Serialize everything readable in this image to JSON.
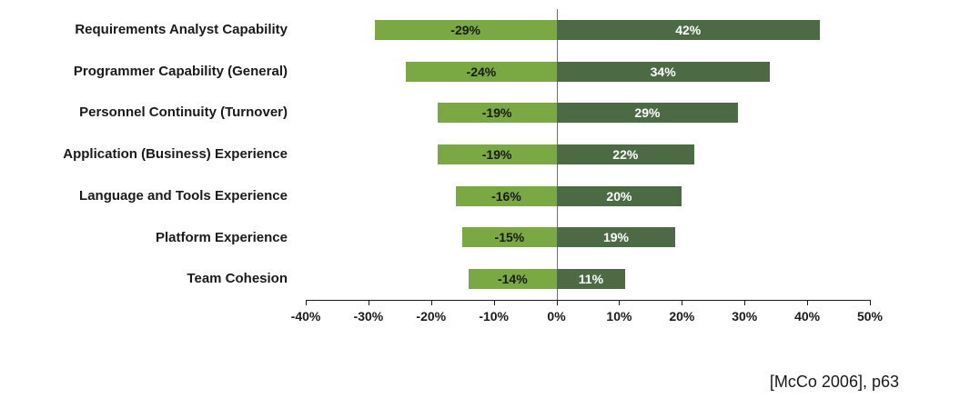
{
  "chart_data": {
    "type": "bar",
    "orientation": "horizontal-diverging",
    "title": "",
    "categories": [
      "Requirements Analyst Capability",
      "Programmer Capability (General)",
      "Personnel Continuity (Turnover)",
      "Application (Business) Experience",
      "Language and Tools Experience",
      "Platform Experience",
      "Team Cohesion"
    ],
    "series": [
      {
        "name": "decrease",
        "values": [
          -29,
          -24,
          -19,
          -19,
          -16,
          -15,
          -14
        ],
        "color": "#7aa843",
        "label_color": "#1a1a1a"
      },
      {
        "name": "increase",
        "values": [
          42,
          34,
          29,
          22,
          20,
          19,
          11
        ],
        "color": "#4c6b45",
        "label_color": "#ffffff"
      }
    ],
    "xlim": [
      -40,
      50
    ],
    "x_tick_values": [
      -40,
      -30,
      -20,
      -10,
      0,
      10,
      20,
      30,
      40,
      50
    ],
    "x_ticks": [
      "-40%",
      "-30%",
      "-20%",
      "-10%",
      "0%",
      "10%",
      "20%",
      "30%",
      "40%",
      "50%"
    ],
    "value_suffix": "%",
    "grid": false,
    "legend": "none"
  },
  "citation": "[McCo 2006], p63"
}
